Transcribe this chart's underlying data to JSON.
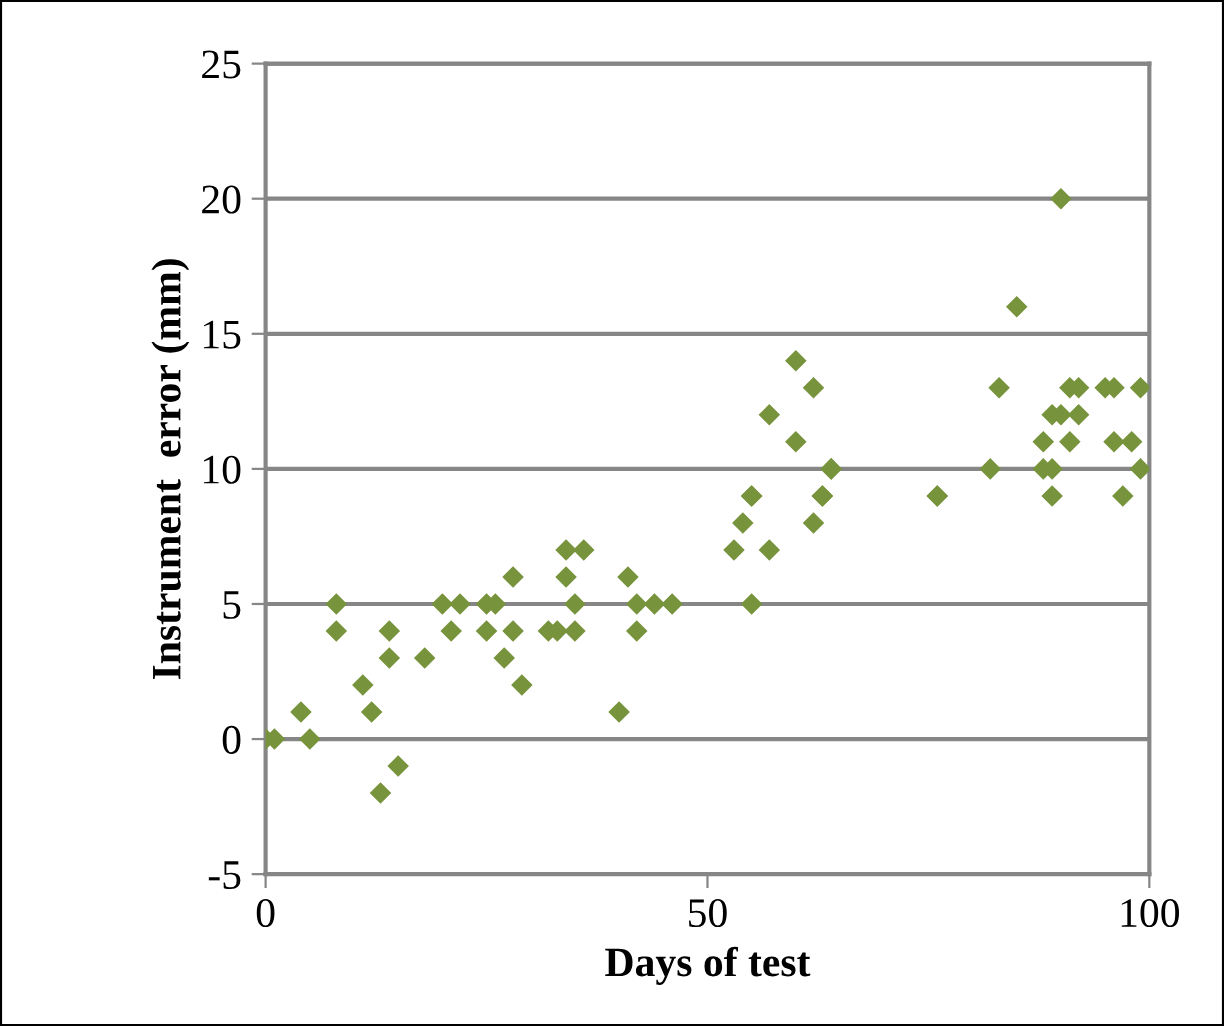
{
  "chart_data": {
    "type": "scatter",
    "xlabel": "Days of test",
    "ylabel": "Instrument  error (mm)",
    "x": [
      0,
      1,
      4,
      5,
      8,
      8,
      11,
      12,
      13,
      14,
      14,
      15,
      18,
      20,
      21,
      22,
      25,
      25,
      26,
      27,
      28,
      28,
      29,
      32,
      33,
      34,
      34,
      35,
      35,
      36,
      40,
      41,
      42,
      42,
      44,
      46,
      53,
      54,
      55,
      55,
      55,
      57,
      57,
      60,
      60,
      62,
      62,
      63,
      63,
      64,
      64,
      76,
      76,
      82,
      83,
      85,
      88,
      88,
      89,
      89,
      89,
      90,
      90,
      91,
      91,
      92,
      92,
      95,
      96,
      96,
      97,
      98,
      99,
      99
    ],
    "values": [
      0,
      0,
      1,
      0,
      4,
      5,
      2,
      1,
      -2,
      3,
      4,
      -1,
      3,
      5,
      4,
      5,
      4,
      5,
      5,
      3,
      6,
      4,
      2,
      4,
      4,
      7,
      6,
      4,
      5,
      7,
      1,
      6,
      4,
      5,
      5,
      5,
      7,
      8,
      9,
      9,
      5,
      7,
      12,
      14,
      11,
      13,
      8,
      9,
      9,
      10,
      10,
      9,
      9,
      10,
      13,
      16,
      11,
      10,
      9,
      10,
      12,
      12,
      20,
      11,
      13,
      12,
      13,
      13,
      13,
      11,
      9,
      11,
      10,
      13
    ],
    "color": "#77933c",
    "marker": "diamond",
    "xlim": [
      0,
      100
    ],
    "xticks": [
      0,
      50,
      100
    ],
    "ylim": [
      -5,
      25
    ],
    "yticks": [
      -5,
      0,
      5,
      10,
      15,
      20,
      25
    ],
    "grid": "y",
    "legend": false
  }
}
